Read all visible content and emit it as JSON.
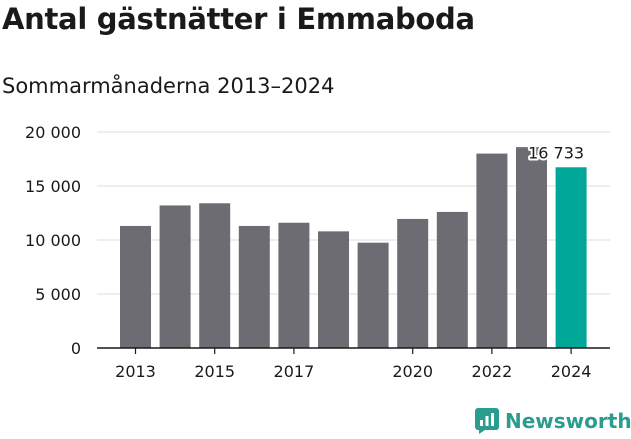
{
  "title": "Antal gästnätter i Emmaboda",
  "subtitle": "Sommarmånaderna 2013–2024",
  "brand": {
    "name": "Newsworthy",
    "color": "#2a9d8f",
    "icon": "newsworthy-logo-icon"
  },
  "colors": {
    "bar": "#6d6c72",
    "highlight": "#00a698",
    "grid": "#dddddd",
    "axis": "#1a1a1a"
  },
  "chart_data": {
    "type": "bar",
    "title": "Antal gästnätter i Emmaboda",
    "subtitle": "Sommarmånaderna 2013–2024",
    "xlabel": "",
    "ylabel": "",
    "categories": [
      "2013",
      "2014",
      "2015",
      "2016",
      "2017",
      "2018",
      "2019",
      "2020",
      "2021",
      "2022",
      "2023",
      "2024"
    ],
    "x_tick_labels": [
      "2013",
      "2015",
      "2017",
      "2020",
      "2022",
      "2024"
    ],
    "values": [
      11300,
      13200,
      13400,
      11300,
      11600,
      10800,
      9750,
      11950,
      12600,
      18000,
      18600,
      16733
    ],
    "ylim": [
      0,
      20000
    ],
    "y_ticks": [
      0,
      5000,
      10000,
      15000,
      20000
    ],
    "y_tick_labels": [
      "0",
      "5 000",
      "10 000",
      "15 000",
      "20 000"
    ],
    "highlight_index": 11,
    "highlight_label": "16 733",
    "grid": true,
    "legend": "none"
  }
}
